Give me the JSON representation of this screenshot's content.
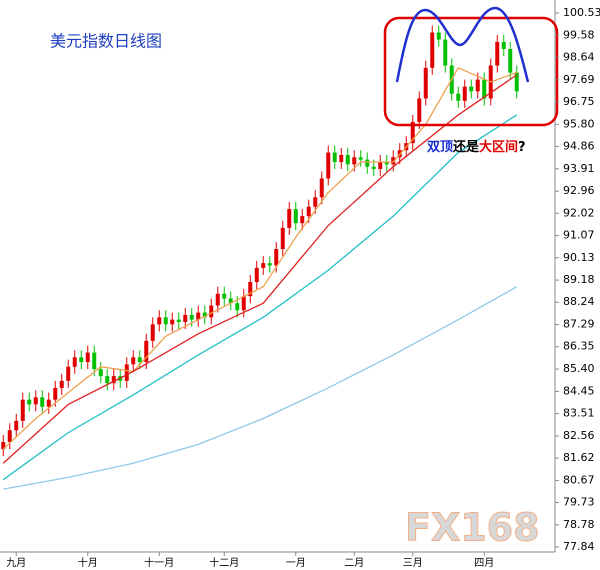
{
  "chart_data": {
    "type": "candlestick",
    "title": "美元指数日线图",
    "annotation": {
      "parts": [
        {
          "text": "双顶",
          "color": "#1a2fd6"
        },
        {
          "text": "还是",
          "color": "#000000"
        },
        {
          "text": "大区间",
          "color": "#e00000"
        },
        {
          "text": "?",
          "color": "#000000"
        }
      ]
    },
    "watermark": "FX168",
    "categories": [
      null,
      null,
      "九月",
      null,
      null,
      null,
      null,
      null,
      null,
      null,
      null,
      null,
      null,
      "十月",
      null,
      null,
      null,
      null,
      null,
      null,
      null,
      null,
      null,
      null,
      "十一月",
      null,
      null,
      null,
      null,
      null,
      null,
      null,
      null,
      null,
      "十二月",
      null,
      null,
      null,
      null,
      null,
      null,
      null,
      null,
      null,
      null,
      "一月",
      null,
      null,
      null,
      null,
      null,
      null,
      null,
      null,
      "二月",
      null,
      null,
      null,
      null,
      null,
      null,
      null,
      null,
      "三月",
      null,
      null,
      null,
      null,
      null,
      null,
      null,
      null,
      null,
      null,
      "四月",
      null,
      null,
      null,
      null,
      null
    ],
    "open": [
      82.0,
      82.3,
      82.8,
      83.2,
      84.1,
      83.9,
      84.2,
      83.8,
      84.1,
      84.6,
      84.9,
      85.5,
      85.9,
      85.7,
      86.1,
      85.4,
      85.1,
      84.8,
      85.1,
      84.9,
      85.6,
      85.9,
      85.7,
      86.6,
      87.3,
      87.6,
      87.3,
      87.5,
      87.4,
      87.7,
      87.5,
      87.8,
      87.6,
      88.1,
      88.6,
      88.4,
      88.2,
      87.9,
      88.5,
      89.1,
      89.7,
      89.9,
      89.8,
      90.5,
      91.4,
      92.2,
      91.6,
      91.9,
      92.3,
      92.7,
      93.5,
      94.6,
      94.2,
      94.5,
      94.1,
      94.4,
      94.3,
      94.0,
      93.9,
      94.2,
      94.1,
      94.4,
      94.7,
      95.0,
      95.9,
      96.9,
      98.2,
      99.7,
      99.4,
      98.3,
      97.1,
      96.8,
      97.4,
      97.2,
      97.7,
      96.9,
      98.3,
      99.3,
      99.0,
      98.0
    ],
    "high": [
      82.6,
      83.1,
      83.5,
      84.4,
      84.4,
      84.5,
      84.5,
      84.4,
      84.9,
      85.2,
      85.8,
      86.2,
      86.2,
      86.4,
      86.4,
      85.7,
      85.4,
      85.4,
      85.4,
      85.9,
      86.2,
      86.2,
      86.9,
      87.6,
      87.9,
      87.9,
      87.8,
      87.8,
      88.0,
      88.0,
      88.1,
      88.1,
      88.4,
      88.9,
      88.9,
      88.7,
      88.5,
      88.8,
      89.4,
      90.0,
      90.2,
      90.2,
      90.8,
      91.7,
      92.5,
      92.5,
      92.2,
      92.6,
      93.0,
      93.8,
      94.9,
      94.9,
      94.8,
      94.8,
      94.7,
      94.7,
      94.6,
      94.3,
      94.5,
      94.5,
      94.7,
      95.0,
      95.3,
      96.2,
      97.2,
      98.5,
      100.0,
      100.0,
      99.7,
      98.6,
      97.4,
      97.7,
      97.7,
      98.0,
      98.0,
      98.6,
      99.6,
      99.6,
      99.3,
      98.3
    ],
    "low": [
      81.7,
      82.0,
      82.5,
      82.9,
      83.6,
      83.6,
      83.5,
      83.5,
      83.8,
      84.3,
      84.6,
      85.2,
      85.4,
      85.4,
      85.1,
      84.8,
      84.5,
      84.5,
      84.6,
      84.6,
      85.3,
      85.4,
      85.4,
      86.3,
      87.0,
      87.0,
      87.0,
      87.1,
      87.1,
      87.2,
      87.2,
      87.3,
      87.3,
      87.8,
      88.1,
      87.9,
      87.6,
      87.6,
      88.2,
      88.8,
      89.4,
      89.5,
      89.5,
      90.2,
      91.1,
      91.3,
      91.3,
      91.6,
      92.0,
      92.4,
      93.2,
      93.9,
      93.9,
      93.8,
      93.8,
      94.0,
      93.7,
      93.6,
      93.6,
      93.8,
      93.8,
      94.1,
      94.4,
      94.7,
      95.6,
      96.6,
      97.9,
      99.1,
      98.0,
      96.8,
      96.5,
      96.5,
      96.9,
      96.9,
      96.6,
      96.6,
      98.0,
      98.7,
      97.7,
      96.9
    ],
    "close": [
      82.3,
      82.8,
      83.2,
      84.1,
      83.9,
      84.2,
      83.8,
      84.1,
      84.6,
      84.9,
      85.5,
      85.9,
      85.7,
      86.1,
      85.4,
      85.1,
      84.8,
      85.1,
      84.9,
      85.6,
      85.9,
      85.7,
      86.6,
      87.3,
      87.6,
      87.3,
      87.5,
      87.4,
      87.7,
      87.5,
      87.8,
      87.6,
      88.1,
      88.6,
      88.4,
      88.2,
      87.9,
      88.5,
      89.1,
      89.7,
      89.9,
      89.8,
      90.5,
      91.4,
      92.2,
      91.6,
      91.9,
      92.3,
      92.7,
      93.5,
      94.6,
      94.2,
      94.5,
      94.1,
      94.4,
      94.3,
      94.0,
      93.9,
      94.2,
      94.1,
      94.4,
      94.7,
      95.0,
      95.9,
      96.9,
      98.2,
      99.7,
      99.4,
      98.3,
      97.1,
      96.8,
      97.4,
      97.2,
      97.7,
      96.9,
      98.3,
      99.3,
      99.0,
      98.0,
      97.2
    ],
    "up_color": "#e00000",
    "down_color": "#00c000",
    "lines": [
      {
        "color": "#f0a050",
        "x": [
          0,
          5,
          10,
          15,
          20,
          25,
          30,
          35,
          40,
          45,
          50,
          55,
          60,
          65,
          70,
          75,
          79
        ],
        "values": [
          82.0,
          83.3,
          84.4,
          85.5,
          85.3,
          86.8,
          87.5,
          88.2,
          88.9,
          91.0,
          92.9,
          94.2,
          94.2,
          95.8,
          98.2,
          97.6,
          98.0
        ]
      },
      {
        "color": "#e02020",
        "x": [
          0,
          10,
          20,
          30,
          40,
          50,
          60,
          70,
          79
        ],
        "values": [
          81.4,
          83.9,
          85.3,
          86.9,
          88.2,
          91.5,
          94.0,
          96.2,
          97.9
        ]
      },
      {
        "color": "#20c0c8",
        "x": [
          0,
          10,
          20,
          30,
          40,
          50,
          60,
          70,
          79
        ],
        "values": [
          80.7,
          82.7,
          84.3,
          86.0,
          87.6,
          89.6,
          91.9,
          94.6,
          96.2
        ]
      },
      {
        "color": "#90c8e8",
        "x": [
          0,
          10,
          20,
          30,
          40,
          50,
          60,
          70,
          79
        ],
        "values": [
          80.3,
          80.8,
          81.4,
          82.2,
          83.3,
          84.6,
          86.0,
          87.5,
          88.9
        ]
      }
    ],
    "ylim": [
      77.84,
      100.53
    ],
    "yticks": [
      100.53,
      99.58,
      98.64,
      97.69,
      96.75,
      {
        "value": 95.8,
        "label": "95.80"
      },
      94.86,
      93.91,
      92.96,
      92.02,
      91.07,
      90.13,
      89.18,
      88.24,
      87.29,
      86.35,
      {
        "value": 85.4,
        "label": "85.40"
      },
      84.45,
      83.51,
      82.56,
      81.62,
      80.67,
      79.73,
      78.78,
      77.84
    ]
  }
}
